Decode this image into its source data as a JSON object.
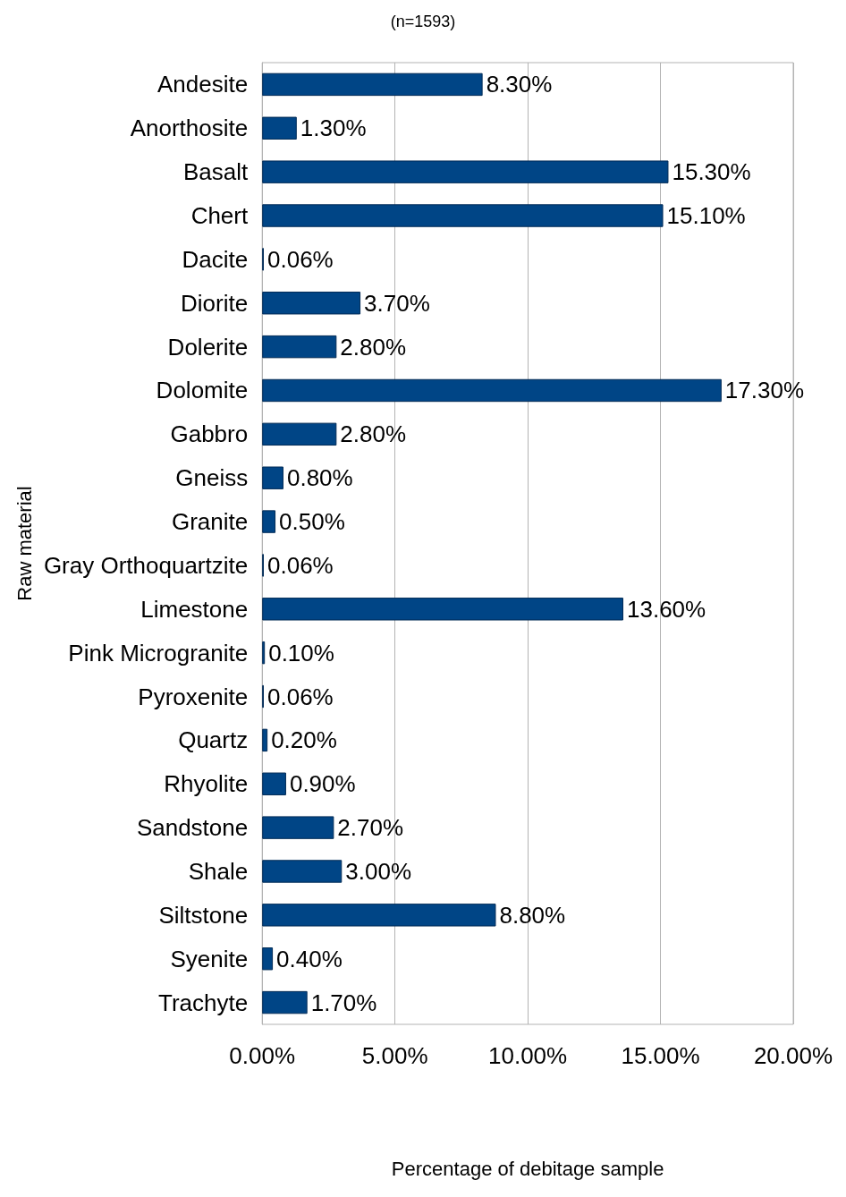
{
  "chart_data": {
    "type": "bar",
    "orientation": "horizontal",
    "title": "(n=1593)",
    "xlabel": "Percentage of debitage sample",
    "ylabel": "Raw material",
    "categories": [
      "Andesite",
      "Anorthosite",
      "Basalt",
      "Chert",
      "Dacite",
      "Diorite",
      "Dolerite",
      "Dolomite",
      "Gabbro",
      "Gneiss",
      "Granite",
      "Gray Orthoquartzite",
      "Limestone",
      "Pink Microgranite",
      "Pyroxenite",
      "Quartz",
      "Rhyolite",
      "Sandstone",
      "Shale",
      "Siltstone",
      "Syenite",
      "Trachyte"
    ],
    "values": [
      8.3,
      1.3,
      15.3,
      15.1,
      0.06,
      3.7,
      2.8,
      17.3,
      2.8,
      0.8,
      0.5,
      0.06,
      13.6,
      0.1,
      0.06,
      0.2,
      0.9,
      2.7,
      3.0,
      8.8,
      0.4,
      1.7
    ],
    "value_labels": [
      "8.30%",
      "1.30%",
      "15.30%",
      "15.10%",
      "0.06%",
      "3.70%",
      "2.80%",
      "17.30%",
      "2.80%",
      "0.80%",
      "0.50%",
      "0.06%",
      "13.60%",
      "0.10%",
      "0.06%",
      "0.20%",
      "0.90%",
      "2.70%",
      "3.00%",
      "8.80%",
      "0.40%",
      "1.70%"
    ],
    "color": "#004586",
    "xlim": [
      0,
      20
    ],
    "xticks": [
      {
        "value": 0,
        "label": "0.00%"
      },
      {
        "value": 5,
        "label": "5.00%"
      },
      {
        "value": 10,
        "label": "10.00%"
      },
      {
        "value": 15,
        "label": "15.00%"
      },
      {
        "value": 20,
        "label": "20.00%"
      }
    ],
    "grid": "x"
  }
}
